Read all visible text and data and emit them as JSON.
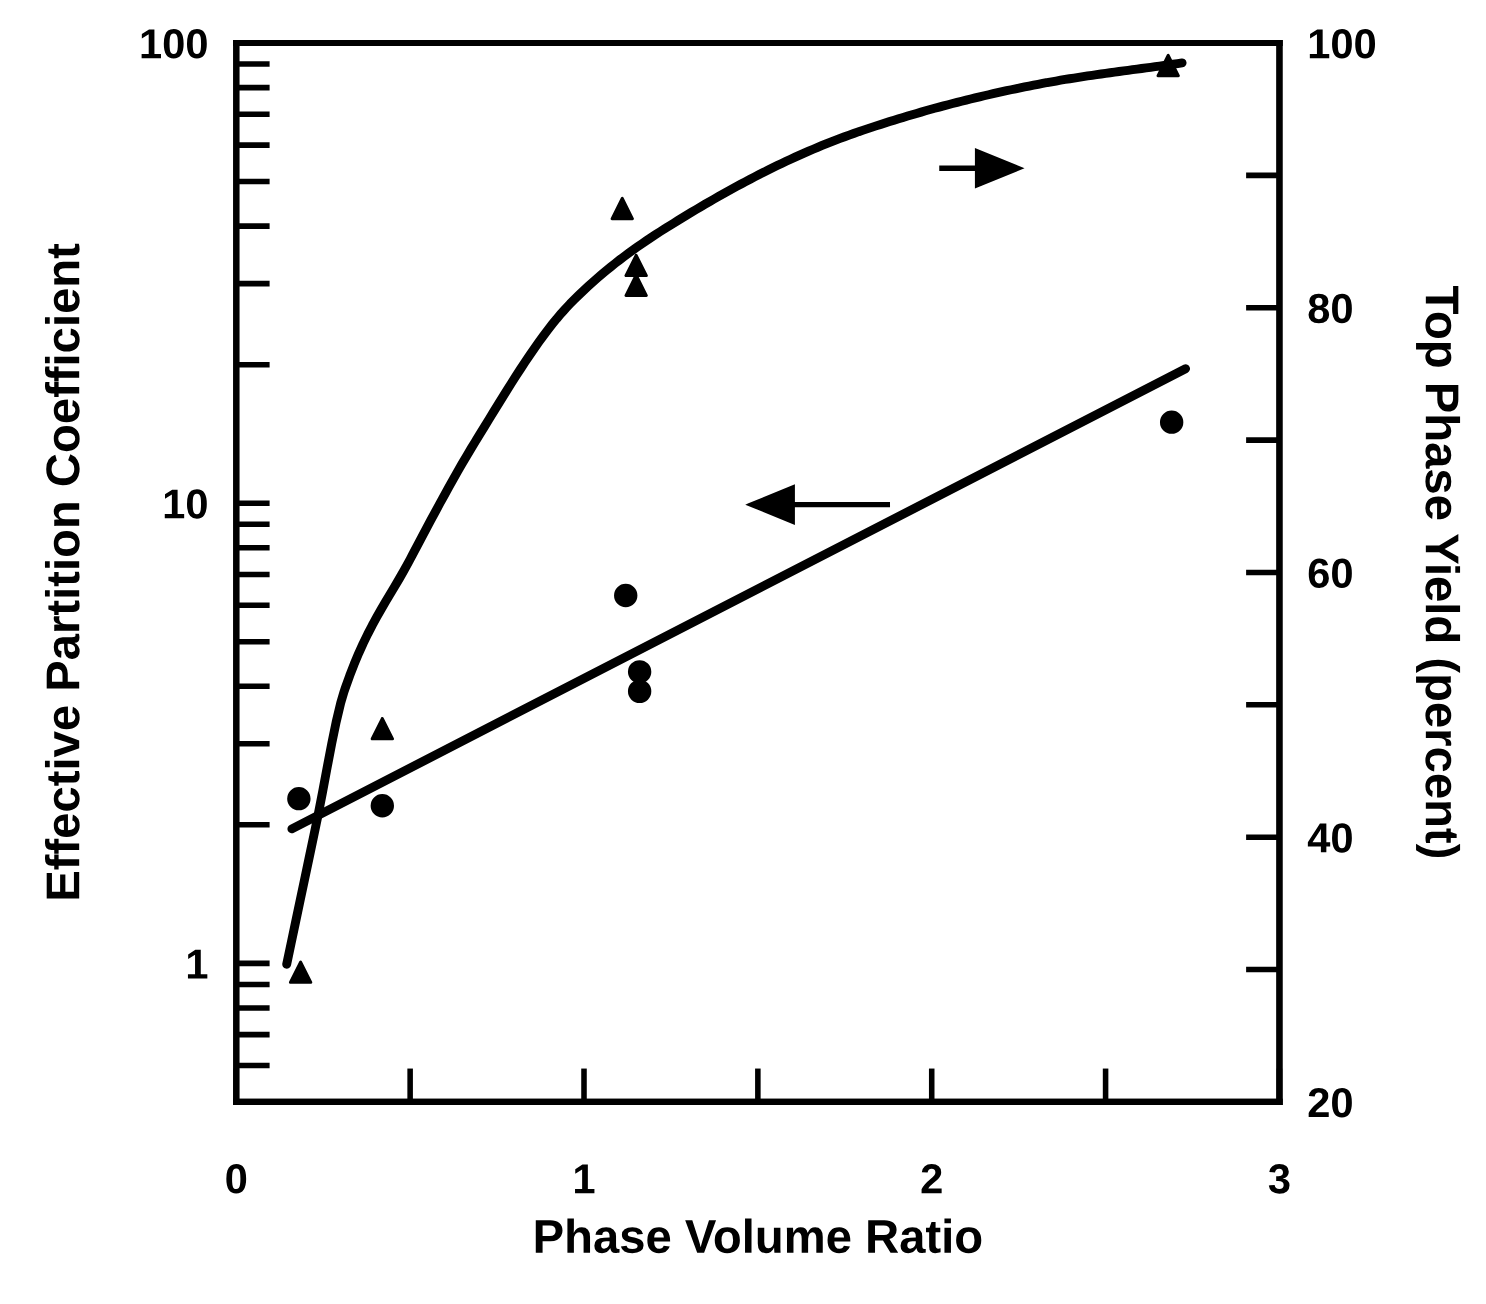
{
  "chart_data": {
    "type": "line",
    "xlabel": "Phase Volume Ratio",
    "ylabel": "Effective Partition Coefficient",
    "y2label": "Top Phase Yield (percent)",
    "log": "y",
    "xlim": [
      0,
      3
    ],
    "xticks": [
      0,
      1,
      2,
      3
    ],
    "ylim": [
      0.5,
      100
    ],
    "yticks": [
      1,
      10,
      100
    ],
    "y2lim": [
      20,
      100
    ],
    "y2ticks": [
      20,
      40,
      60,
      80,
      100
    ],
    "series": [
      {
        "type": "scatter",
        "color": "#000000",
        "marker": "circle",
        "x": [
          0.18,
          0.42,
          1.12,
          1.16,
          1.16,
          2.69
        ],
        "values": [
          2.28,
          2.2,
          6.3,
          4.3,
          3.9,
          15
        ]
      },
      {
        "color": "#000000",
        "marker": "none",
        "line_style": "solid",
        "x": [
          0.16,
          2.73
        ],
        "values": [
          1.96,
          19.6
        ]
      },
      {
        "type": "scatter",
        "axis": "y2",
        "color": "#000000",
        "marker": "triangle",
        "x": [
          0.185,
          0.42,
          1.11,
          1.15,
          1.15,
          2.68
        ],
        "values": [
          29.8,
          48.2,
          87.5,
          83.2,
          81.7,
          98.3
        ]
      },
      {
        "axis": "y2",
        "color": "#000000",
        "marker": "none",
        "line_style": "solid",
        "x": [
          0.145,
          0.23,
          0.31,
          0.5,
          0.69,
          0.96,
          1.24,
          1.79,
          2.33,
          2.72
        ],
        "values": [
          30.4,
          41,
          51,
          61,
          70,
          80.3,
          86.1,
          93.3,
          97,
          98.5
        ]
      }
    ]
  }
}
